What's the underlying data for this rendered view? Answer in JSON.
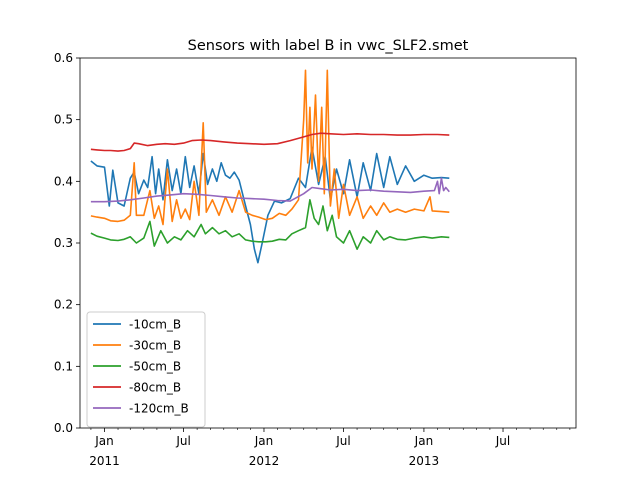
{
  "chart_data": {
    "type": "line",
    "title": "Sensors with label B in vwc_SLF2.smet",
    "xlabel": "",
    "ylabel": "",
    "ylim": [
      0.0,
      0.6
    ],
    "xlim": [
      "2010-11-06",
      "2013-12-15"
    ],
    "legend_position": "lower-left",
    "grid": false,
    "y_ticks": [
      "0.0",
      "0.1",
      "0.2",
      "0.3",
      "0.4",
      "0.5",
      "0.6"
    ],
    "x_ticks": [
      {
        "date": "2011-01-01",
        "label": "Jan",
        "sublabel": "2011"
      },
      {
        "date": "2011-07-01",
        "label": "Jul",
        "sublabel": ""
      },
      {
        "date": "2012-01-01",
        "label": "Jan",
        "sublabel": "2012"
      },
      {
        "date": "2012-07-01",
        "label": "Jul",
        "sublabel": ""
      },
      {
        "date": "2013-01-01",
        "label": "Jan",
        "sublabel": "2013"
      },
      {
        "date": "2013-07-01",
        "label": "Jul",
        "sublabel": ""
      }
    ],
    "series": [
      {
        "name": "-10cm_B",
        "color": "#1f77b4",
        "points": [
          [
            "2010-12-01",
            0.433
          ],
          [
            "2010-12-15",
            0.425
          ],
          [
            "2011-01-01",
            0.423
          ],
          [
            "2011-01-12",
            0.36
          ],
          [
            "2011-01-20",
            0.418
          ],
          [
            "2011-02-01",
            0.365
          ],
          [
            "2011-02-15",
            0.36
          ],
          [
            "2011-03-01",
            0.405
          ],
          [
            "2011-03-10",
            0.415
          ],
          [
            "2011-03-20",
            0.38
          ],
          [
            "2011-04-01",
            0.402
          ],
          [
            "2011-04-10",
            0.39
          ],
          [
            "2011-04-20",
            0.44
          ],
          [
            "2011-04-28",
            0.38
          ],
          [
            "2011-05-05",
            0.42
          ],
          [
            "2011-05-15",
            0.37
          ],
          [
            "2011-05-25",
            0.435
          ],
          [
            "2011-06-05",
            0.385
          ],
          [
            "2011-06-15",
            0.42
          ],
          [
            "2011-06-25",
            0.38
          ],
          [
            "2011-07-05",
            0.44
          ],
          [
            "2011-07-15",
            0.39
          ],
          [
            "2011-07-25",
            0.425
          ],
          [
            "2011-08-05",
            0.38
          ],
          [
            "2011-08-15",
            0.445
          ],
          [
            "2011-08-25",
            0.395
          ],
          [
            "2011-09-05",
            0.42
          ],
          [
            "2011-09-15",
            0.4
          ],
          [
            "2011-09-25",
            0.43
          ],
          [
            "2011-10-05",
            0.41
          ],
          [
            "2011-10-15",
            0.405
          ],
          [
            "2011-10-25",
            0.415
          ],
          [
            "2011-11-05",
            0.402
          ],
          [
            "2011-11-20",
            0.36
          ],
          [
            "2011-12-01",
            0.33
          ],
          [
            "2011-12-10",
            0.29
          ],
          [
            "2011-12-18",
            0.268
          ],
          [
            "2011-12-28",
            0.3
          ],
          [
            "2012-01-10",
            0.345
          ],
          [
            "2012-01-25",
            0.368
          ],
          [
            "2012-02-10",
            0.365
          ],
          [
            "2012-03-01",
            0.372
          ],
          [
            "2012-03-20",
            0.405
          ],
          [
            "2012-04-05",
            0.39
          ],
          [
            "2012-04-20",
            0.455
          ],
          [
            "2012-05-05",
            0.395
          ],
          [
            "2012-05-20",
            0.44
          ],
          [
            "2012-06-01",
            0.37
          ],
          [
            "2012-06-15",
            0.42
          ],
          [
            "2012-07-01",
            0.38
          ],
          [
            "2012-07-15",
            0.435
          ],
          [
            "2012-08-01",
            0.375
          ],
          [
            "2012-08-15",
            0.43
          ],
          [
            "2012-09-01",
            0.385
          ],
          [
            "2012-09-15",
            0.445
          ],
          [
            "2012-10-01",
            0.39
          ],
          [
            "2012-10-15",
            0.44
          ],
          [
            "2012-11-01",
            0.395
          ],
          [
            "2012-11-20",
            0.425
          ],
          [
            "2012-12-10",
            0.4
          ],
          [
            "2013-01-01",
            0.41
          ],
          [
            "2013-01-20",
            0.405
          ],
          [
            "2013-02-10",
            0.406
          ],
          [
            "2013-02-28",
            0.405
          ]
        ]
      },
      {
        "name": "-30cm_B",
        "color": "#ff7f0e",
        "points": [
          [
            "2010-12-01",
            0.344
          ],
          [
            "2010-12-15",
            0.342
          ],
          [
            "2011-01-01",
            0.34
          ],
          [
            "2011-01-15",
            0.336
          ],
          [
            "2011-02-01",
            0.335
          ],
          [
            "2011-02-15",
            0.337
          ],
          [
            "2011-03-01",
            0.345
          ],
          [
            "2011-03-10",
            0.43
          ],
          [
            "2011-03-15",
            0.345
          ],
          [
            "2011-04-01",
            0.345
          ],
          [
            "2011-04-15",
            0.385
          ],
          [
            "2011-04-25",
            0.34
          ],
          [
            "2011-05-05",
            0.36
          ],
          [
            "2011-05-15",
            0.33
          ],
          [
            "2011-05-25",
            0.42
          ],
          [
            "2011-06-05",
            0.335
          ],
          [
            "2011-06-15",
            0.37
          ],
          [
            "2011-06-25",
            0.34
          ],
          [
            "2011-07-05",
            0.355
          ],
          [
            "2011-07-15",
            0.338
          ],
          [
            "2011-07-25",
            0.4
          ],
          [
            "2011-08-05",
            0.345
          ],
          [
            "2011-08-15",
            0.495
          ],
          [
            "2011-08-22",
            0.35
          ],
          [
            "2011-09-05",
            0.37
          ],
          [
            "2011-09-20",
            0.345
          ],
          [
            "2011-10-05",
            0.375
          ],
          [
            "2011-10-20",
            0.35
          ],
          [
            "2011-11-05",
            0.385
          ],
          [
            "2011-11-20",
            0.35
          ],
          [
            "2011-12-05",
            0.345
          ],
          [
            "2011-12-20",
            0.342
          ],
          [
            "2012-01-05",
            0.338
          ],
          [
            "2012-01-20",
            0.34
          ],
          [
            "2012-02-05",
            0.348
          ],
          [
            "2012-02-20",
            0.345
          ],
          [
            "2012-03-05",
            0.355
          ],
          [
            "2012-03-20",
            0.37
          ],
          [
            "2012-04-01",
            0.5
          ],
          [
            "2012-04-05",
            0.58
          ],
          [
            "2012-04-10",
            0.43
          ],
          [
            "2012-04-15",
            0.52
          ],
          [
            "2012-04-20",
            0.42
          ],
          [
            "2012-04-28",
            0.54
          ],
          [
            "2012-05-05",
            0.4
          ],
          [
            "2012-05-12",
            0.52
          ],
          [
            "2012-05-18",
            0.38
          ],
          [
            "2012-05-25",
            0.58
          ],
          [
            "2012-06-01",
            0.36
          ],
          [
            "2012-06-10",
            0.42
          ],
          [
            "2012-06-20",
            0.34
          ],
          [
            "2012-07-01",
            0.395
          ],
          [
            "2012-07-15",
            0.345
          ],
          [
            "2012-08-01",
            0.375
          ],
          [
            "2012-08-15",
            0.34
          ],
          [
            "2012-09-01",
            0.36
          ],
          [
            "2012-09-15",
            0.345
          ],
          [
            "2012-10-01",
            0.365
          ],
          [
            "2012-10-15",
            0.35
          ],
          [
            "2012-11-01",
            0.355
          ],
          [
            "2012-11-20",
            0.35
          ],
          [
            "2012-12-10",
            0.355
          ],
          [
            "2013-01-01",
            0.352
          ],
          [
            "2013-01-15",
            0.375
          ],
          [
            "2013-01-20",
            0.352
          ],
          [
            "2013-02-10",
            0.351
          ],
          [
            "2013-02-28",
            0.35
          ]
        ]
      },
      {
        "name": "-50cm_B",
        "color": "#2ca02c",
        "points": [
          [
            "2010-12-01",
            0.316
          ],
          [
            "2010-12-15",
            0.311
          ],
          [
            "2011-01-01",
            0.308
          ],
          [
            "2011-01-15",
            0.305
          ],
          [
            "2011-02-01",
            0.304
          ],
          [
            "2011-02-15",
            0.306
          ],
          [
            "2011-03-01",
            0.31
          ],
          [
            "2011-03-15",
            0.3
          ],
          [
            "2011-04-01",
            0.308
          ],
          [
            "2011-04-15",
            0.335
          ],
          [
            "2011-04-25",
            0.295
          ],
          [
            "2011-05-10",
            0.32
          ],
          [
            "2011-05-25",
            0.3
          ],
          [
            "2011-06-10",
            0.31
          ],
          [
            "2011-06-25",
            0.305
          ],
          [
            "2011-07-10",
            0.32
          ],
          [
            "2011-07-25",
            0.31
          ],
          [
            "2011-08-10",
            0.33
          ],
          [
            "2011-08-20",
            0.315
          ],
          [
            "2011-09-05",
            0.325
          ],
          [
            "2011-09-20",
            0.315
          ],
          [
            "2011-10-05",
            0.32
          ],
          [
            "2011-10-20",
            0.31
          ],
          [
            "2011-11-05",
            0.315
          ],
          [
            "2011-11-20",
            0.305
          ],
          [
            "2011-12-05",
            0.303
          ],
          [
            "2011-12-20",
            0.302
          ],
          [
            "2012-01-05",
            0.302
          ],
          [
            "2012-01-20",
            0.303
          ],
          [
            "2012-02-05",
            0.306
          ],
          [
            "2012-02-20",
            0.305
          ],
          [
            "2012-03-05",
            0.315
          ],
          [
            "2012-03-20",
            0.32
          ],
          [
            "2012-04-05",
            0.325
          ],
          [
            "2012-04-15",
            0.37
          ],
          [
            "2012-04-25",
            0.34
          ],
          [
            "2012-05-05",
            0.33
          ],
          [
            "2012-05-15",
            0.36
          ],
          [
            "2012-05-25",
            0.32
          ],
          [
            "2012-06-05",
            0.345
          ],
          [
            "2012-06-15",
            0.31
          ],
          [
            "2012-07-01",
            0.3
          ],
          [
            "2012-07-15",
            0.32
          ],
          [
            "2012-08-01",
            0.29
          ],
          [
            "2012-08-15",
            0.31
          ],
          [
            "2012-09-01",
            0.3
          ],
          [
            "2012-09-15",
            0.32
          ],
          [
            "2012-10-01",
            0.305
          ],
          [
            "2012-10-15",
            0.31
          ],
          [
            "2012-11-01",
            0.306
          ],
          [
            "2012-11-20",
            0.305
          ],
          [
            "2012-12-10",
            0.308
          ],
          [
            "2013-01-01",
            0.31
          ],
          [
            "2013-01-20",
            0.308
          ],
          [
            "2013-02-10",
            0.31
          ],
          [
            "2013-02-28",
            0.309
          ]
        ]
      },
      {
        "name": "-80cm_B",
        "color": "#d62728",
        "points": [
          [
            "2010-12-01",
            0.452
          ],
          [
            "2010-12-15",
            0.451
          ],
          [
            "2011-01-01",
            0.45
          ],
          [
            "2011-01-15",
            0.45
          ],
          [
            "2011-02-01",
            0.449
          ],
          [
            "2011-02-15",
            0.45
          ],
          [
            "2011-03-01",
            0.453
          ],
          [
            "2011-03-10",
            0.462
          ],
          [
            "2011-03-20",
            0.461
          ],
          [
            "2011-04-10",
            0.458
          ],
          [
            "2011-05-01",
            0.46
          ],
          [
            "2011-05-20",
            0.461
          ],
          [
            "2011-06-10",
            0.46
          ],
          [
            "2011-07-01",
            0.462
          ],
          [
            "2011-07-20",
            0.466
          ],
          [
            "2011-08-10",
            0.467
          ],
          [
            "2011-09-01",
            0.466
          ],
          [
            "2011-10-01",
            0.464
          ],
          [
            "2011-11-01",
            0.462
          ],
          [
            "2011-12-01",
            0.461
          ],
          [
            "2012-01-01",
            0.46
          ],
          [
            "2012-02-01",
            0.461
          ],
          [
            "2012-03-01",
            0.466
          ],
          [
            "2012-04-01",
            0.472
          ],
          [
            "2012-04-20",
            0.476
          ],
          [
            "2012-05-10",
            0.478
          ],
          [
            "2012-06-01",
            0.477
          ],
          [
            "2012-07-01",
            0.476
          ],
          [
            "2012-08-01",
            0.477
          ],
          [
            "2012-09-01",
            0.476
          ],
          [
            "2012-10-01",
            0.476
          ],
          [
            "2012-11-01",
            0.475
          ],
          [
            "2012-12-01",
            0.475
          ],
          [
            "2013-01-01",
            0.476
          ],
          [
            "2013-02-01",
            0.476
          ],
          [
            "2013-02-28",
            0.475
          ]
        ]
      },
      {
        "name": "-120cm_B",
        "color": "#9467bd",
        "points": [
          [
            "2010-12-01",
            0.367
          ],
          [
            "2011-01-01",
            0.367
          ],
          [
            "2011-02-01",
            0.368
          ],
          [
            "2011-03-01",
            0.37
          ],
          [
            "2011-04-01",
            0.373
          ],
          [
            "2011-05-01",
            0.376
          ],
          [
            "2011-06-01",
            0.378
          ],
          [
            "2011-07-01",
            0.38
          ],
          [
            "2011-08-01",
            0.379
          ],
          [
            "2011-09-01",
            0.377
          ],
          [
            "2011-10-01",
            0.375
          ],
          [
            "2011-11-01",
            0.373
          ],
          [
            "2011-12-01",
            0.372
          ],
          [
            "2012-01-01",
            0.371
          ],
          [
            "2012-02-01",
            0.369
          ],
          [
            "2012-03-01",
            0.368
          ],
          [
            "2012-04-01",
            0.38
          ],
          [
            "2012-04-20",
            0.39
          ],
          [
            "2012-05-10",
            0.388
          ],
          [
            "2012-06-01",
            0.386
          ],
          [
            "2012-07-01",
            0.387
          ],
          [
            "2012-08-01",
            0.385
          ],
          [
            "2012-09-01",
            0.386
          ],
          [
            "2012-10-01",
            0.384
          ],
          [
            "2012-11-01",
            0.383
          ],
          [
            "2012-12-01",
            0.382
          ],
          [
            "2013-01-01",
            0.384
          ],
          [
            "2013-01-25",
            0.385
          ],
          [
            "2013-02-01",
            0.4
          ],
          [
            "2013-02-05",
            0.38
          ],
          [
            "2013-02-10",
            0.405
          ],
          [
            "2013-02-15",
            0.385
          ],
          [
            "2013-02-20",
            0.39
          ],
          [
            "2013-02-28",
            0.383
          ]
        ]
      }
    ]
  }
}
